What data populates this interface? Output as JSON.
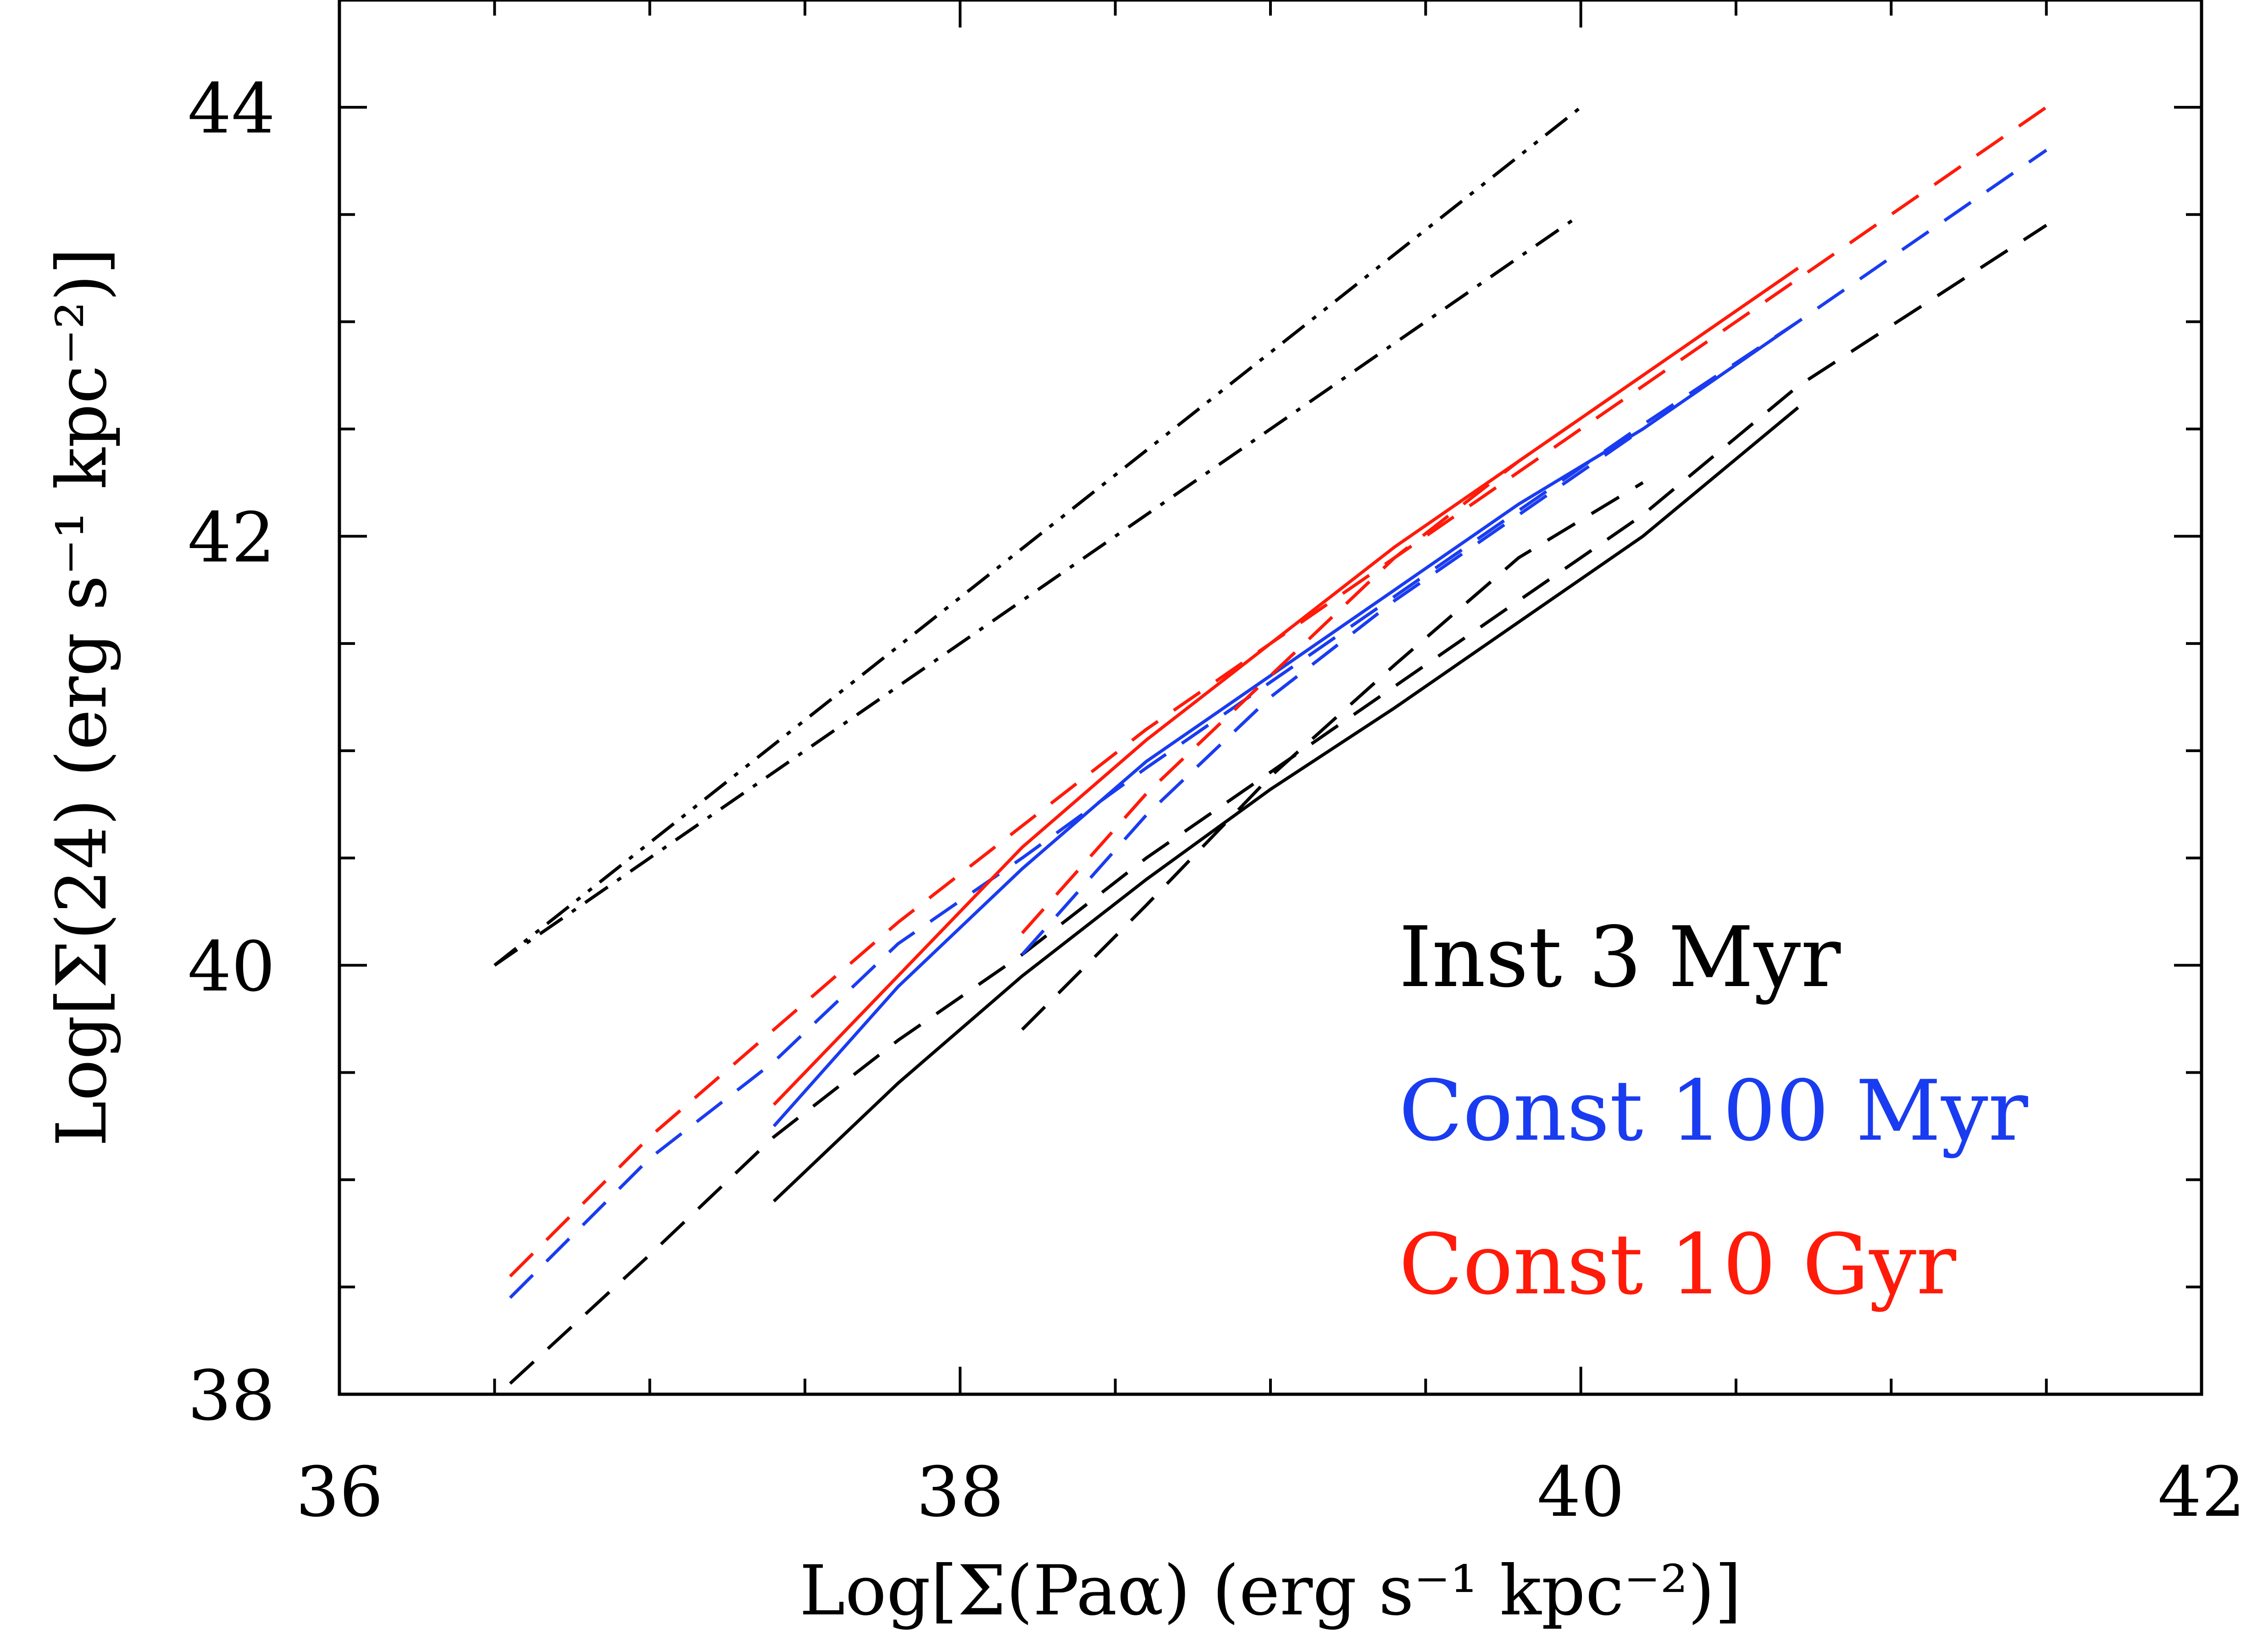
{
  "chart_data": {
    "type": "line",
    "xlabel": "Log[Σ(Paα) (erg s⁻¹ kpc⁻²)]",
    "ylabel": "Log[Σ(24)   (erg s⁻¹ kpc⁻²)]",
    "xlim": [
      36,
      42
    ],
    "ylim": [
      38,
      44.5
    ],
    "x_ticks": [
      36,
      38,
      40,
      42
    ],
    "y_ticks": [
      38,
      40,
      42,
      44
    ],
    "x_minor_step": 0.5,
    "y_minor_step": 0.5,
    "grid": false,
    "legend_placement": "lower-right",
    "legend": [
      {
        "label": "Inst 3 Myr",
        "color": "#000000"
      },
      {
        "label": "Const 100 Myr",
        "color": "#1a3cf0"
      },
      {
        "label": "Const 10 Gyr",
        "color": "#ff1a0a"
      }
    ],
    "series": [
      {
        "model": "Inst 3 Myr",
        "style": "solid",
        "color": "#000000",
        "x": [
          37.4,
          37.8,
          38.2,
          38.6,
          39.0,
          39.4,
          39.8,
          40.2,
          40.7
        ],
        "y": [
          38.9,
          39.45,
          39.95,
          40.4,
          40.82,
          41.2,
          41.6,
          42.0,
          42.6
        ]
      },
      {
        "model": "Inst 3 Myr",
        "style": "dashed",
        "color": "#000000",
        "x": [
          36.55,
          37.0,
          37.4,
          37.8,
          38.2,
          38.6,
          39.0,
          39.4,
          39.8,
          40.2,
          40.7,
          41.5
        ],
        "y": [
          38.05,
          38.65,
          39.2,
          39.65,
          40.05,
          40.5,
          40.9,
          41.3,
          41.7,
          42.1,
          42.7,
          43.45
        ]
      },
      {
        "model": "Inst 3 Myr",
        "style": "dashed",
        "color": "#000000",
        "x": [
          38.2,
          38.6,
          39.0,
          39.4,
          39.8,
          40.2
        ],
        "y": [
          39.7,
          40.28,
          40.88,
          41.4,
          41.9,
          42.25
        ]
      },
      {
        "model": "reference",
        "style": "dashdot",
        "color": "#000000",
        "x": [
          36.5,
          40.0
        ],
        "y": [
          40.0,
          43.5
        ]
      },
      {
        "model": "reference",
        "style": "dashdotdot",
        "color": "#000000",
        "x": [
          36.5,
          40.0
        ],
        "y": [
          40.0,
          44.0
        ]
      },
      {
        "model": "Const 100 Myr",
        "style": "solid",
        "color": "#1a3cf0",
        "x": [
          37.4,
          37.8,
          38.2,
          38.6,
          39.0,
          39.4,
          39.8,
          40.2,
          40.7
        ],
        "y": [
          39.25,
          39.9,
          40.45,
          40.95,
          41.35,
          41.75,
          42.15,
          42.5,
          43.0
        ]
      },
      {
        "model": "Const 100 Myr",
        "style": "dashed",
        "color": "#1a3cf0",
        "x": [
          36.55,
          37.0,
          37.4,
          37.8,
          38.2,
          38.6,
          39.0,
          39.4,
          39.8,
          40.2,
          40.7,
          41.5
        ],
        "y": [
          38.45,
          39.1,
          39.55,
          40.1,
          40.5,
          40.92,
          41.32,
          41.72,
          42.12,
          42.52,
          43.0,
          43.8
        ]
      },
      {
        "model": "Const 100 Myr",
        "style": "dashed",
        "color": "#1a3cf0",
        "x": [
          38.2,
          38.6,
          39.0,
          39.4,
          39.8,
          40.2
        ],
        "y": [
          40.05,
          40.7,
          41.25,
          41.7,
          42.1,
          42.5
        ]
      },
      {
        "model": "Const 10 Gyr",
        "style": "solid",
        "color": "#ff1a0a",
        "x": [
          37.4,
          37.8,
          38.2,
          38.6,
          39.0,
          39.4,
          39.8,
          40.2,
          40.7
        ],
        "y": [
          39.35,
          39.95,
          40.55,
          41.05,
          41.5,
          41.95,
          42.35,
          42.75,
          43.25
        ]
      },
      {
        "model": "Const 10 Gyr",
        "style": "dashed",
        "color": "#ff1a0a",
        "x": [
          36.55,
          37.0,
          37.4,
          37.8,
          38.2,
          38.6,
          39.0,
          39.4,
          39.8,
          40.2,
          40.7,
          41.5
        ],
        "y": [
          38.55,
          39.2,
          39.7,
          40.2,
          40.65,
          41.1,
          41.5,
          41.9,
          42.3,
          42.7,
          43.2,
          44.0
        ]
      },
      {
        "model": "Const 10 Gyr",
        "style": "dashed",
        "color": "#ff1a0a",
        "x": [
          38.2,
          38.6,
          39.0,
          39.4,
          39.8,
          40.2
        ],
        "y": [
          40.15,
          40.8,
          41.35,
          41.9,
          42.35,
          42.75
        ]
      }
    ]
  }
}
